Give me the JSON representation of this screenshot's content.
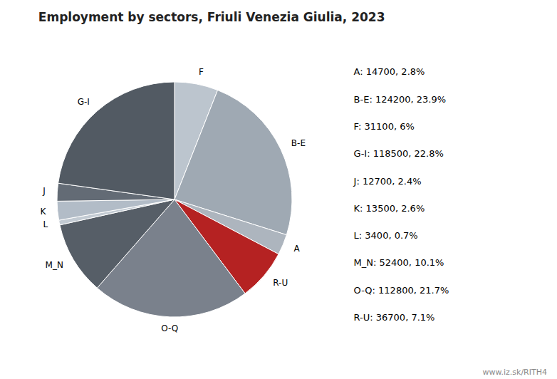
{
  "chart_data": {
    "type": "pie",
    "title": "Employment by sectors, Friuli Venezia Giulia, 2023",
    "categories": [
      "F",
      "B-E",
      "A",
      "R-U",
      "O-Q",
      "M_N",
      "L",
      "K",
      "J",
      "G-I"
    ],
    "values": [
      31100,
      124200,
      14700,
      36700,
      112800,
      52400,
      3400,
      13500,
      12700,
      118500
    ],
    "colors": [
      "#bcc5ce",
      "#9fa9b3",
      "#adb5be",
      "#b52222",
      "#7a818c",
      "#565e67",
      "#c3cbd3",
      "#b2bcc7",
      "#636b75",
      "#525a63"
    ],
    "annotations": [
      "A: 14700, 2.8%",
      "B-E: 124200, 23.9%",
      "F: 31100, 6%",
      "G-I: 118500, 22.8%",
      "J: 12700, 2.4%",
      "K: 13500, 2.6%",
      "L: 3400, 0.7%",
      "M_N: 52400, 10.1%",
      "O-Q: 112800, 21.7%",
      "R-U: 36700, 7.1%"
    ],
    "source": "www.iz.sk/RITH4"
  }
}
